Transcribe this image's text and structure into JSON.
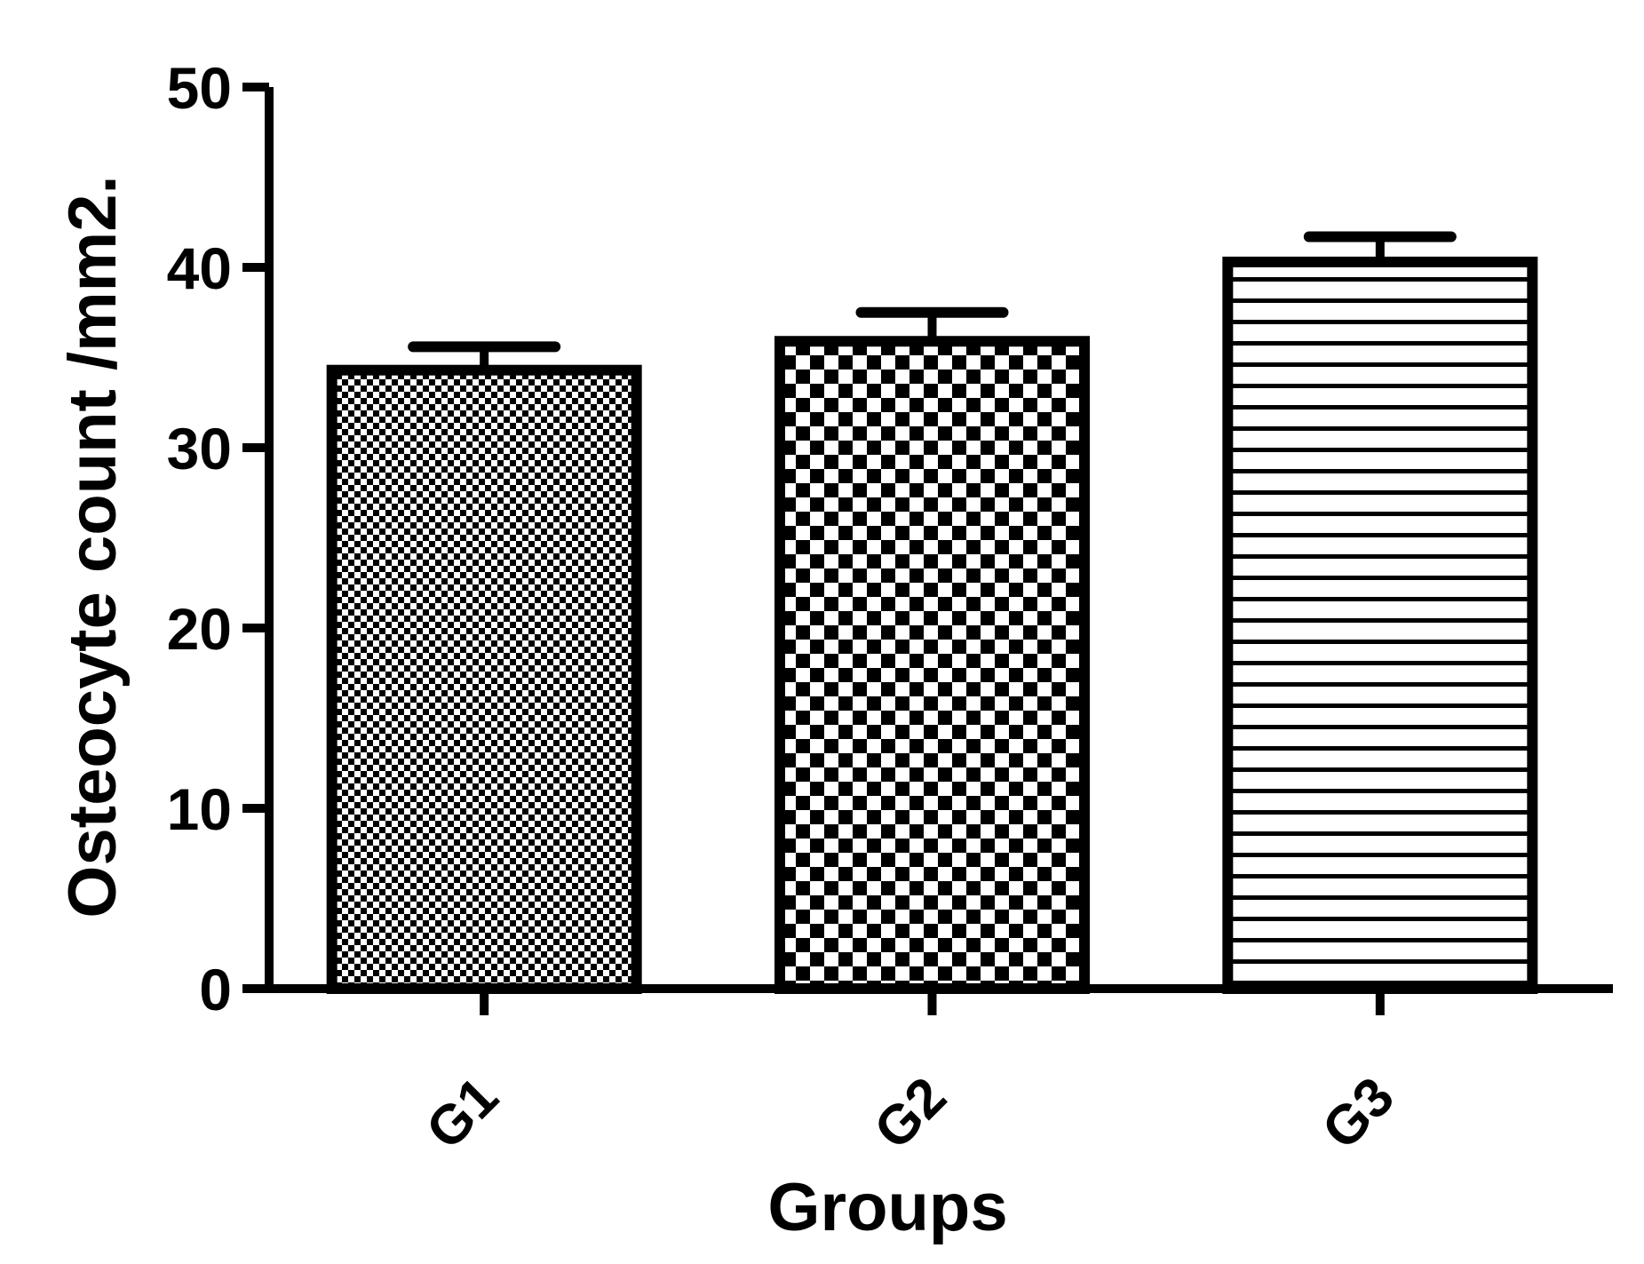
{
  "chart_data": {
    "type": "bar",
    "title": "",
    "xlabel": "Groups",
    "ylabel": "Osteocyte count /mm2.",
    "categories": [
      "G1",
      "G2",
      "G3"
    ],
    "values": [
      34.3,
      35.9,
      40.3
    ],
    "errors": [
      1.3,
      1.6,
      1.4
    ],
    "ylim": [
      0,
      50
    ],
    "yticks": [
      0,
      10,
      20,
      30,
      40,
      50
    ],
    "patterns": [
      "fine-checker",
      "coarse-checker",
      "horizontal-stripes"
    ],
    "grid": false,
    "legend": "none",
    "colors": {
      "ink": "#000000",
      "fill": "#ffffff"
    }
  }
}
